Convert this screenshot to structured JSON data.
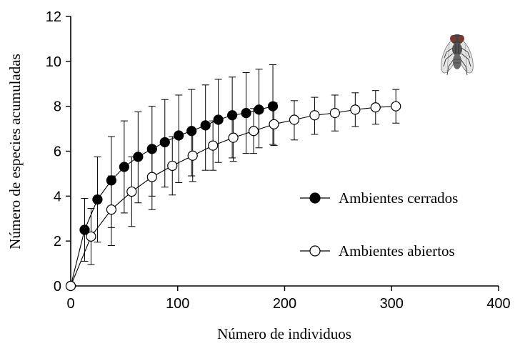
{
  "chart_data": {
    "type": "line",
    "xlabel": "Número de individuos",
    "ylabel": "Número de especies acumuladas",
    "xlim": [
      0,
      400
    ],
    "ylim": [
      0,
      12
    ],
    "xticks": [
      0,
      100,
      200,
      300,
      400
    ],
    "yticks": [
      0,
      2,
      4,
      6,
      8,
      10,
      12
    ],
    "grid": false,
    "legend_position": "right",
    "series": [
      {
        "name": "Ambientes cerrados",
        "marker": "filled-circle",
        "color": "#000000",
        "x": [
          0,
          13,
          25,
          38,
          50,
          63,
          76,
          88,
          101,
          113,
          126,
          138,
          151,
          164,
          176,
          189
        ],
        "y": [
          0,
          2.5,
          3.85,
          4.7,
          5.3,
          5.75,
          6.1,
          6.4,
          6.7,
          6.9,
          7.15,
          7.4,
          7.6,
          7.7,
          7.85,
          8.0
        ],
        "err_low": [
          0,
          1.4,
          1.9,
          2.1,
          2.05,
          2.05,
          2.1,
          2.0,
          2.1,
          2.0,
          2.0,
          1.9,
          1.9,
          1.8,
          1.7,
          1.7
        ],
        "err_high": [
          0,
          1.4,
          1.9,
          1.95,
          2.05,
          2.0,
          1.9,
          1.9,
          1.8,
          1.85,
          1.8,
          1.8,
          1.7,
          1.8,
          1.8,
          1.85
        ]
      },
      {
        "name": "Ambientes abiertos",
        "marker": "open-circle",
        "color": "#000000",
        "x": [
          0,
          19,
          38,
          57,
          76,
          95,
          114,
          133,
          152,
          171,
          190,
          209,
          228,
          247,
          266,
          285,
          304
        ],
        "y": [
          0,
          2.2,
          3.4,
          4.2,
          4.85,
          5.35,
          5.8,
          6.25,
          6.6,
          6.9,
          7.2,
          7.4,
          7.6,
          7.7,
          7.85,
          7.95,
          8.0
        ],
        "err_low": [
          0,
          1.25,
          1.6,
          1.55,
          1.45,
          1.3,
          1.15,
          1.1,
          1.05,
          1.0,
          0.95,
          0.9,
          0.85,
          0.8,
          0.75,
          0.75,
          0.75
        ],
        "err_high": [
          0,
          1.25,
          1.5,
          1.55,
          1.35,
          1.3,
          1.2,
          1.1,
          1.0,
          1.0,
          0.95,
          0.85,
          0.8,
          0.8,
          0.75,
          0.75,
          0.75
        ]
      }
    ]
  },
  "decoration": {
    "icon": "fly-icon"
  }
}
